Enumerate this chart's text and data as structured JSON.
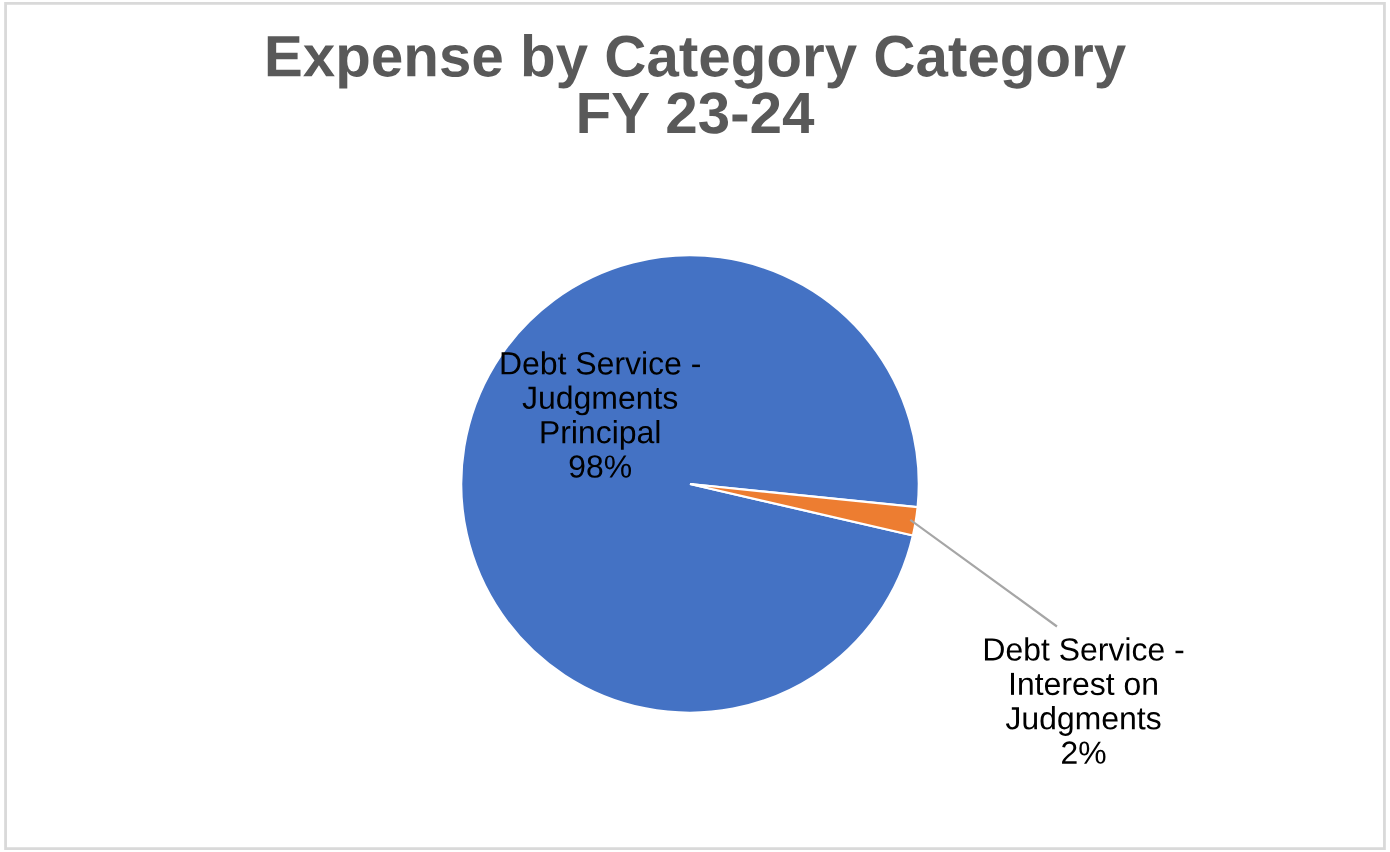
{
  "chart_data": {
    "type": "pie",
    "title": "Expense by Category Category\nFY 23-24",
    "categories": [
      "Debt Service - Judgments Principal",
      "Debt Service - Interest on Judgments"
    ],
    "values": [
      98,
      2
    ],
    "colors": [
      "#4472c4",
      "#ed7d31"
    ],
    "value_labels": [
      "98%",
      "2%"
    ],
    "legend": false
  }
}
